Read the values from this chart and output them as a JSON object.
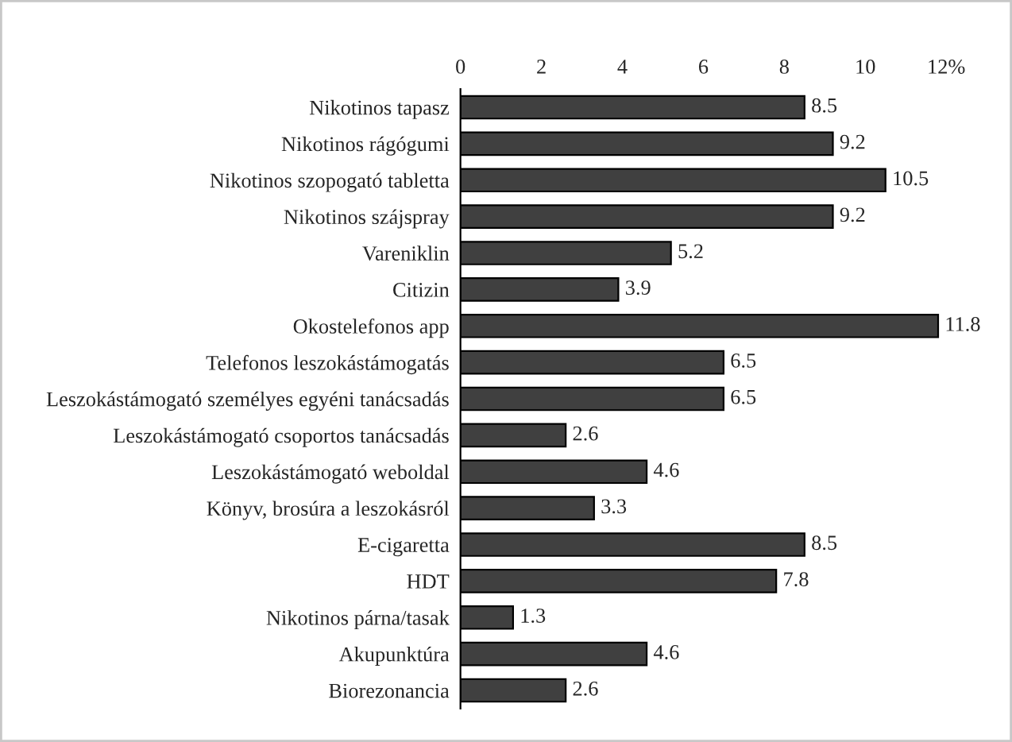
{
  "chart_data": {
    "type": "bar",
    "orientation": "horizontal",
    "categories": [
      "Nikotinos tapasz",
      "Nikotinos rágógumi",
      "Nikotinos szopogató tabletta",
      "Nikotinos szájspray",
      "Vareniklin",
      "Citizin",
      "Okostelefonos app",
      "Telefonos leszokástámogatás",
      "Leszokástámogató személyes egyéni tanácsadás",
      "Leszokástámogató csoportos tanácsadás",
      "Leszokástámogató weboldal",
      "Könyv, brosúra a leszokásról",
      "E-cigaretta",
      "HDT",
      "Nikotinos párna/tasak",
      "Akupunktúra",
      "Biorezonancia"
    ],
    "values": [
      8.5,
      9.2,
      10.5,
      9.2,
      5.2,
      3.9,
      11.8,
      6.5,
      6.5,
      2.6,
      4.6,
      3.3,
      8.5,
      7.8,
      1.3,
      4.6,
      2.6
    ],
    "color": "#404040",
    "xlim": [
      0,
      12
    ],
    "xticks": [
      0,
      2,
      4,
      6,
      8,
      10,
      {
        "value": 12,
        "label": "12%"
      }
    ],
    "data_labels": true,
    "grid": false,
    "legend": false
  }
}
